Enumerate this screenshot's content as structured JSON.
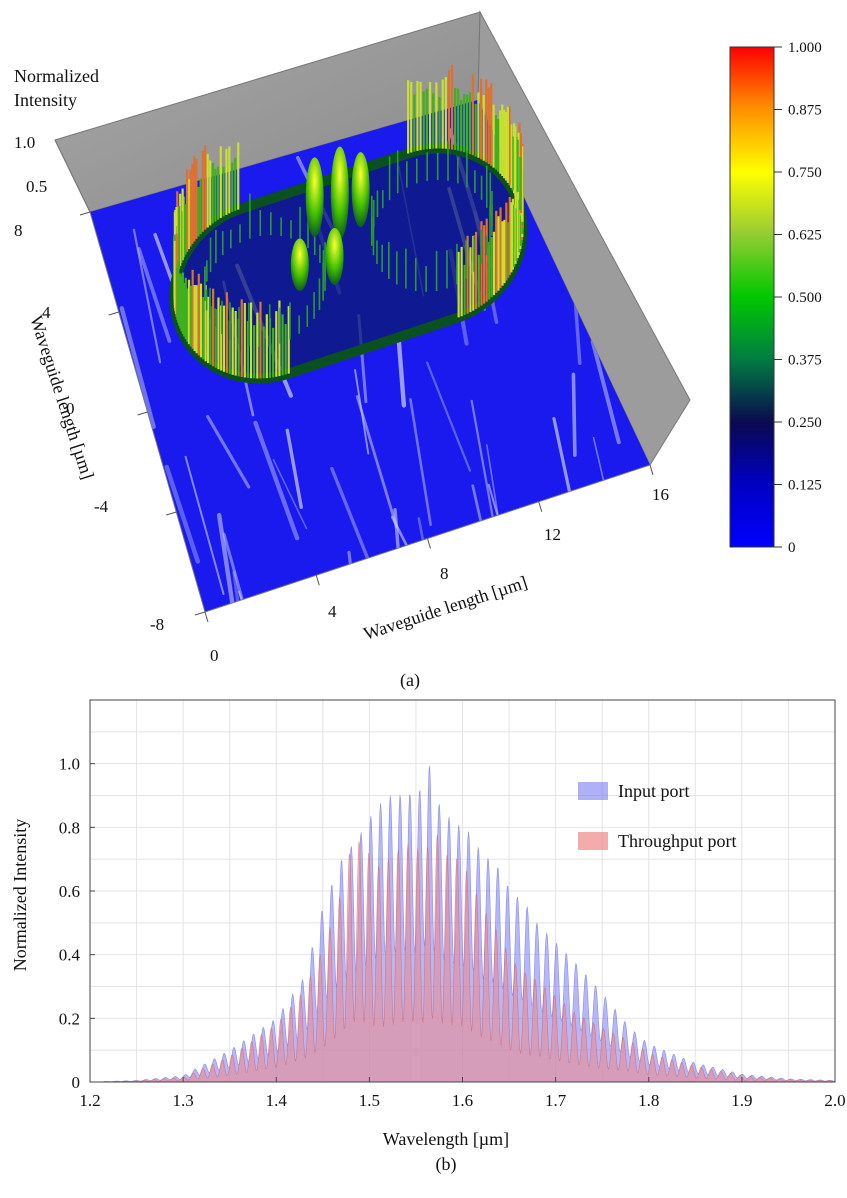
{
  "chart_data": [
    {
      "type": "heatmap",
      "label": "(a)",
      "zlabel_line1": "Normalized",
      "zlabel_line2": "Intensity",
      "z_ticks": [
        "1.0",
        "0.5"
      ],
      "xlabel": "Waveguide length [µm]",
      "ylabel": "Waveguide length [µm]",
      "x_ticks": [
        "0",
        "4",
        "8",
        "12",
        "16"
      ],
      "y_ticks": [
        "8",
        "4",
        "0",
        "-4",
        "-8"
      ],
      "xlim": [
        0,
        16
      ],
      "ylim": [
        -8,
        8
      ],
      "zlim": [
        0,
        1
      ],
      "colorbar": {
        "ticks": [
          "1.000",
          "0.875",
          "0.750",
          "0.625",
          "0.500",
          "0.375",
          "0.250",
          "0.125",
          "0"
        ],
        "colors": [
          "#ff0000",
          "#ff8c00",
          "#ffff00",
          "#9acd32",
          "#00c800",
          "#008040",
          "#0a0a50",
          "#0000c0",
          "#0000ff"
        ]
      },
      "description_values": {
        "ring_centers_x": [
          5,
          11
        ],
        "ring_center_y": 3,
        "ring_radius": 3
      }
    },
    {
      "type": "area",
      "label": "(b)",
      "xlabel": "Wavelength [µm]",
      "ylabel": "Normalized Intensity",
      "xlim": [
        1.2,
        2.0
      ],
      "ylim": [
        0,
        1.2
      ],
      "x_ticks": [
        "1.2",
        "1.3",
        "1.4",
        "1.5",
        "1.6",
        "1.7",
        "1.8",
        "1.9",
        "2.0"
      ],
      "y_ticks": [
        "0",
        "0.2",
        "0.4",
        "0.6",
        "0.8",
        "1.0"
      ],
      "grid": true,
      "legend_position": "top-right",
      "series": [
        {
          "name": "Input port",
          "color": "#7a7cf0",
          "x": [
            1.2,
            1.25,
            1.3,
            1.35,
            1.4,
            1.43,
            1.45,
            1.47,
            1.49,
            1.5,
            1.51,
            1.52,
            1.53,
            1.54,
            1.55,
            1.56,
            1.565,
            1.57,
            1.58,
            1.59,
            1.6,
            1.61,
            1.62,
            1.63,
            1.64,
            1.65,
            1.66,
            1.67,
            1.68,
            1.7,
            1.72,
            1.75,
            1.78,
            1.8,
            1.85,
            1.9,
            1.95,
            2.0
          ],
          "y": [
            0.0,
            0.005,
            0.02,
            0.1,
            0.2,
            0.33,
            0.55,
            0.7,
            0.78,
            0.83,
            0.87,
            0.9,
            0.9,
            0.91,
            0.9,
            0.95,
            1.0,
            0.9,
            0.85,
            0.82,
            0.8,
            0.78,
            0.72,
            0.7,
            0.67,
            0.61,
            0.58,
            0.55,
            0.5,
            0.44,
            0.38,
            0.28,
            0.17,
            0.12,
            0.06,
            0.025,
            0.01,
            0.005
          ]
        },
        {
          "name": "Throughput port",
          "color": "#f08888",
          "x": [
            1.2,
            1.25,
            1.3,
            1.35,
            1.4,
            1.43,
            1.45,
            1.47,
            1.48,
            1.49,
            1.5,
            1.51,
            1.52,
            1.53,
            1.54,
            1.55,
            1.56,
            1.57,
            1.58,
            1.6,
            1.62,
            1.64,
            1.65,
            1.66,
            1.68,
            1.7,
            1.72,
            1.75,
            1.78,
            1.8,
            1.85,
            1.9,
            1.95,
            2.0
          ],
          "y": [
            0.0,
            0.004,
            0.015,
            0.08,
            0.18,
            0.29,
            0.42,
            0.6,
            0.74,
            0.76,
            0.72,
            0.68,
            0.7,
            0.73,
            0.75,
            0.74,
            0.72,
            0.8,
            0.72,
            0.7,
            0.56,
            0.46,
            0.4,
            0.36,
            0.32,
            0.27,
            0.22,
            0.17,
            0.13,
            0.09,
            0.05,
            0.02,
            0.008,
            0.004
          ]
        }
      ]
    }
  ]
}
